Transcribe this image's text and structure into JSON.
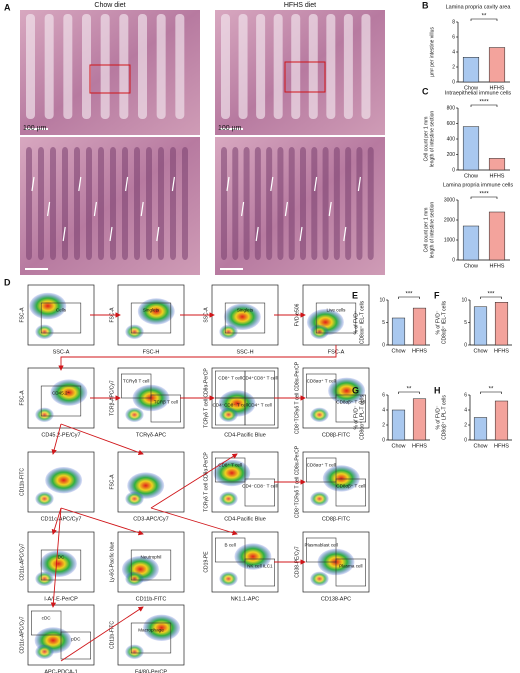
{
  "panel_a": {
    "label": "A",
    "titles": [
      "Chow diet",
      "HFHS diet"
    ],
    "scale_bars": [
      "100 µm",
      "100 µm"
    ]
  },
  "panel_d": {
    "label": "D",
    "plots": [
      {
        "x_label": "SSC-A",
        "y_label": "FSC-A",
        "gates": [
          "Cells"
        ]
      },
      {
        "x_label": "FSC-H",
        "y_label": "FSC-A",
        "gates": [
          "Singlets"
        ]
      },
      {
        "x_label": "SSC-H",
        "y_label": "SSC-A",
        "gates": [
          "Singlets"
        ]
      },
      {
        "x_label": "FSC-A",
        "y_label": "FVD-e506",
        "gates": [
          "Live cells"
        ]
      },
      {
        "x_label": "CD45.2-PE/Cy7",
        "y_label": "FSC-A",
        "gates": [
          "CD45.2⁺"
        ]
      },
      {
        "x_label": "TCRγδ-APC",
        "y_label": "TCRβ-APC/Cy7",
        "gates": [
          "TCRγδ T cell",
          "TCRβ T cell"
        ]
      },
      {
        "x_label": "CD4-Pacific Blue",
        "y_label": "TCRγδ T cell CD8α-PerCP",
        "gates": [
          "CD8⁺ T cell",
          "CD4⁺CD8⁺ T cell",
          "CD4⁻CD8⁻ T cell",
          "CD4⁺ T cell"
        ]
      },
      {
        "x_label": "CD8β-FITC",
        "y_label": "CD8⁺TCRγδ T cell CD8α-PerCP",
        "gates": [
          "CD8αα⁺ T cell",
          "CD8αβ⁺ T cell"
        ]
      },
      {
        "x_label": "CD11c-APC/Cy7",
        "y_label": "CD11b-FITC",
        "gates": []
      },
      {
        "x_label": "CD3-APC/Cy7",
        "y_label": "FSC-A",
        "gates": []
      },
      {
        "x_label": "CD4-Pacific Blue",
        "y_label": "TCRγδ T cell CD8α-PerCP",
        "gates": [
          "CD8⁺ T cell",
          "CD4⁻CD8⁻ T cell"
        ]
      },
      {
        "x_label": "CD8β-FITC",
        "y_label": "CD8⁺TCRγδ T cell CD8α-PerCP",
        "gates": [
          "CD8αα⁺ T cell",
          "CD8αβ⁺ T cell"
        ]
      },
      {
        "x_label": "I-A/I-E-PerCP",
        "y_label": "CD11c-APC/Cy7",
        "gates": [
          "DC"
        ]
      },
      {
        "x_label": "CD11b-FITC",
        "y_label": "Ly-6G-Pacific blue",
        "gates": [
          "Neutrophil"
        ]
      },
      {
        "x_label": "NK1.1-APC",
        "y_label": "CD19-PE",
        "gates": [
          "B cell",
          "NK cell ILC1"
        ]
      },
      {
        "x_label": "CD138-APC",
        "y_label": "CD38-PE/Cy7",
        "gates": [
          "Plasmablast cell",
          "Plasma cell"
        ]
      },
      {
        "x_label": "APC-PDCA-1",
        "y_label": "CD11c-APC/Cy7",
        "gates": [
          "cDC",
          "pDC"
        ]
      },
      {
        "x_label": "F4/80-PerCP",
        "y_label": "CD11b-FITC",
        "gates": [
          "Macrophage"
        ]
      }
    ]
  },
  "chart_data": [
    {
      "type": "bar",
      "panel": "B",
      "title": "Lamina propria cavity area",
      "y_label": [
        "µm² per intestine villus"
      ],
      "categories": [
        "Chow",
        "HFHS"
      ],
      "values": [
        3.3,
        4.6
      ],
      "colors": [
        "#a9c8ef",
        "#f3a39c"
      ],
      "ylim": [
        0,
        8
      ],
      "yticks": [
        0,
        2,
        4,
        6,
        8
      ],
      "significance": "**"
    },
    {
      "type": "bar",
      "panel": "C",
      "title": "Intraepithelial immune cells",
      "y_label": [
        "Cell count per 1 mm",
        "length of intestine section"
      ],
      "categories": [
        "Chow",
        "HFHS"
      ],
      "values": [
        560,
        150
      ],
      "colors": [
        "#a9c8ef",
        "#f3a39c"
      ],
      "ylim": [
        0,
        800
      ],
      "yticks": [
        0,
        200,
        400,
        600,
        800
      ],
      "significance": "****"
    },
    {
      "type": "bar",
      "title": "Lamina propria immune cells",
      "y_label": [
        "Cell count per 1 mm",
        "length of intestine section"
      ],
      "categories": [
        "Chow",
        "HFHS"
      ],
      "values": [
        1700,
        2400
      ],
      "colors": [
        "#a9c8ef",
        "#f3a39c"
      ],
      "ylim": [
        0,
        3000
      ],
      "yticks": [
        0,
        1000,
        2000,
        3000
      ],
      "significance": "****"
    },
    {
      "type": "bar",
      "panel": "E",
      "y_label": [
        "% of FVD⁻",
        "CD8αα⁺ IEL-T cells"
      ],
      "categories": [
        "Chow",
        "HFHS"
      ],
      "values": [
        6,
        8.2
      ],
      "colors": [
        "#a9c8ef",
        "#f3a39c"
      ],
      "ylim": [
        0,
        10
      ],
      "yticks": [
        0,
        5,
        10
      ],
      "significance": "***"
    },
    {
      "type": "bar",
      "panel": "F",
      "y_label": [
        "% of FVD⁻",
        "CD8αβ⁺ IEL-T cells"
      ],
      "categories": [
        "Chow",
        "HFHS"
      ],
      "values": [
        8.5,
        9.5
      ],
      "colors": [
        "#a9c8ef",
        "#f3a39c"
      ],
      "ylim": [
        0,
        10
      ],
      "yticks": [
        0,
        5,
        10
      ],
      "significance": "***"
    },
    {
      "type": "bar",
      "panel": "G",
      "y_label": [
        "% of FVD⁻",
        "CD8αα⁺ LPL-T cells"
      ],
      "categories": [
        "Chow",
        "HFHS"
      ],
      "values": [
        4,
        5.5
      ],
      "colors": [
        "#a9c8ef",
        "#f3a39c"
      ],
      "ylim": [
        0,
        6
      ],
      "yticks": [
        0,
        2,
        4,
        6
      ],
      "significance": "**"
    },
    {
      "type": "bar",
      "panel": "H",
      "y_label": [
        "% of FVD⁻",
        "CD8αβ⁺ LPL-T cells"
      ],
      "categories": [
        "Chow",
        "HFHS"
      ],
      "values": [
        3,
        5.2
      ],
      "colors": [
        "#a9c8ef",
        "#f3a39c"
      ],
      "ylim": [
        0,
        6
      ],
      "yticks": [
        0,
        2,
        4,
        6
      ],
      "significance": "**"
    }
  ]
}
